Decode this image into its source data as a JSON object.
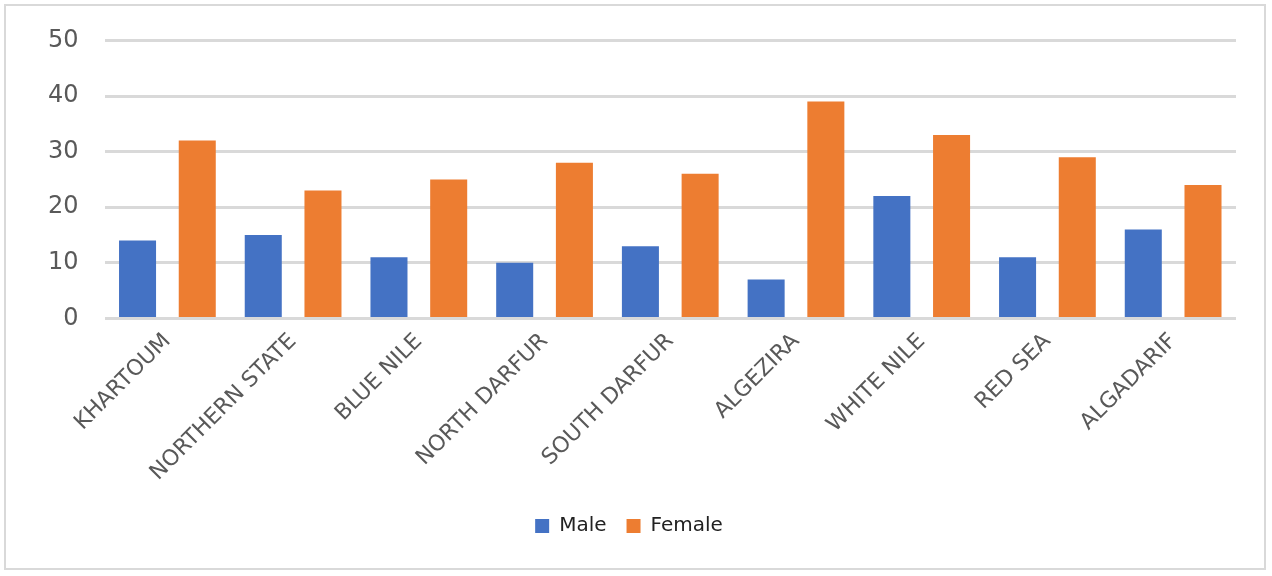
{
  "chart_data": {
    "type": "bar",
    "categories": [
      "KHARTOUM",
      "NORTHERN STATE",
      "BLUE NILE",
      "NORTH DARFUR",
      "SOUTH DARFUR",
      "ALGEZIRA",
      "WHITE NILE",
      "RED SEA",
      "ALGADARIF"
    ],
    "series": [
      {
        "name": "Male",
        "color": "#4472c4",
        "values": [
          14,
          15,
          11,
          10,
          13,
          7,
          22,
          11,
          16
        ]
      },
      {
        "name": "Female",
        "color": "#ed7d31",
        "values": [
          32,
          23,
          25,
          28,
          26,
          39,
          33,
          29,
          24
        ]
      }
    ],
    "ylim": [
      0,
      50
    ],
    "yticks": [
      0,
      10,
      20,
      30,
      40,
      50
    ],
    "grid": "y",
    "legend": "bottom"
  }
}
